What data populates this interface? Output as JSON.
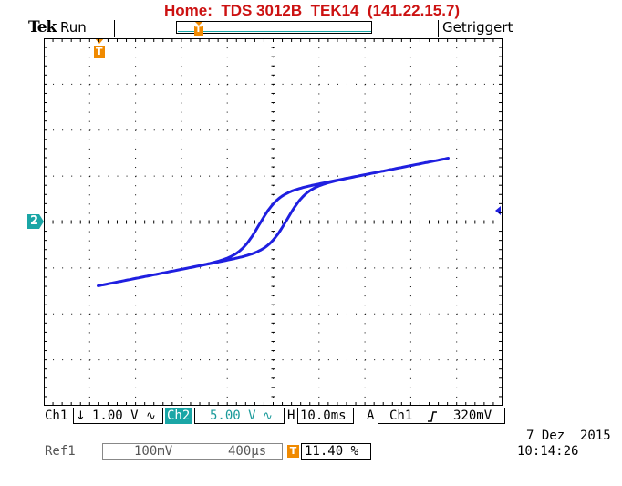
{
  "header": {
    "title": "Home:  TDS 3012B  TEK14  (141.22.15.7)",
    "brand": "Tek",
    "run_state": "Run",
    "trigger_state": "Getriggert",
    "trigger_marker": "T"
  },
  "markers": {
    "channel2_marker": "2"
  },
  "status_bar": {
    "ch1_label": "Ch1",
    "ch1_coupling_icon": "arrow-down-icon",
    "ch1_scale": "1.00 V",
    "ch1_bw_icon": "wave-icon",
    "ch2_label": "Ch2",
    "ch2_scale": "5.00 V",
    "ch2_bw_icon": "wave-icon",
    "h_label": "H",
    "timebase": "10.0ms",
    "trigger_mode": "A",
    "trigger_source": "Ch1",
    "trigger_slope_icon": "rising-edge-icon",
    "trigger_level": "320mV"
  },
  "ref_bar": {
    "ref_label": "Ref1",
    "ref_scale": "100mV",
    "ref_time": "400µs",
    "t_marker": "T",
    "t_position": "11.40 %"
  },
  "datetime": {
    "date": "7 Dez  2015",
    "time": "10:14:26"
  },
  "colors": {
    "trace": "#1f1fe0",
    "title": "#cc1111",
    "accent_teal": "#1aa6a6",
    "trigger_orange": "#f08a00"
  }
}
